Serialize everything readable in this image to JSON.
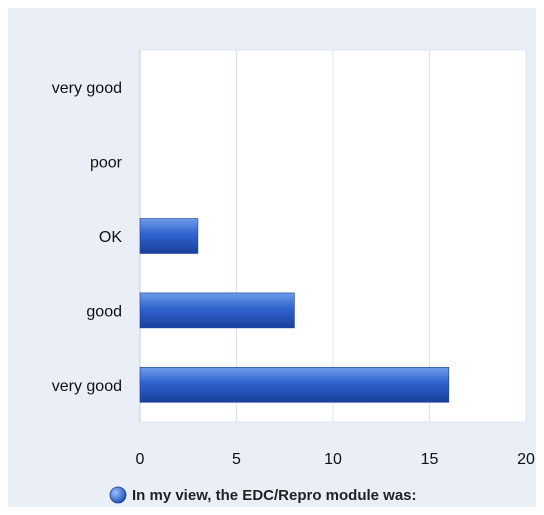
{
  "chart_data": {
    "type": "bar",
    "orientation": "horizontal",
    "categories": [
      "very good",
      "poor",
      "OK",
      "good",
      "very good"
    ],
    "series": [
      {
        "name": "In my view, the EDC/Repro module was:",
        "values": [
          0,
          0,
          3,
          8,
          16
        ]
      }
    ],
    "xlim": [
      0,
      20
    ],
    "xticks": [
      "0",
      "5",
      "10",
      "15",
      "20"
    ],
    "grid": "vertical",
    "legend": "bottom",
    "colors": {
      "bar": "#2f63cf",
      "bar_dark": "#1b3f9a",
      "bar_light": "#6f9be8",
      "plot_bg": "#ffffff",
      "grid": "#dde3ee"
    }
  }
}
